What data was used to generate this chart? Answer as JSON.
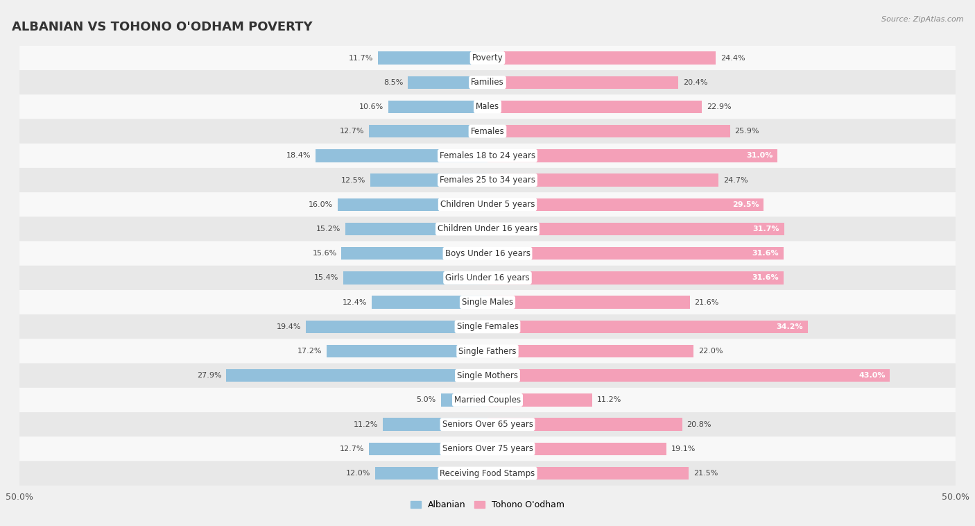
{
  "title": "ALBANIAN VS TOHONO O'ODHAM POVERTY",
  "source": "Source: ZipAtlas.com",
  "categories": [
    "Poverty",
    "Families",
    "Males",
    "Females",
    "Females 18 to 24 years",
    "Females 25 to 34 years",
    "Children Under 5 years",
    "Children Under 16 years",
    "Boys Under 16 years",
    "Girls Under 16 years",
    "Single Males",
    "Single Females",
    "Single Fathers",
    "Single Mothers",
    "Married Couples",
    "Seniors Over 65 years",
    "Seniors Over 75 years",
    "Receiving Food Stamps"
  ],
  "albanian": [
    11.7,
    8.5,
    10.6,
    12.7,
    18.4,
    12.5,
    16.0,
    15.2,
    15.6,
    15.4,
    12.4,
    19.4,
    17.2,
    27.9,
    5.0,
    11.2,
    12.7,
    12.0
  ],
  "tohono": [
    24.4,
    20.4,
    22.9,
    25.9,
    31.0,
    24.7,
    29.5,
    31.7,
    31.6,
    31.6,
    21.6,
    34.2,
    22.0,
    43.0,
    11.2,
    20.8,
    19.1,
    21.5
  ],
  "albanian_color": "#92c0dc",
  "tohono_color": "#f4a0b8",
  "albanian_label": "Albanian",
  "tohono_label": "Tohono O'odham",
  "xlim": 50.0,
  "bar_height": 0.52,
  "background_color": "#f0f0f0",
  "row_light": "#f8f8f8",
  "row_dark": "#e8e8e8",
  "title_fontsize": 13,
  "label_fontsize": 8.5,
  "value_fontsize": 8.0,
  "inside_threshold": 28.0
}
